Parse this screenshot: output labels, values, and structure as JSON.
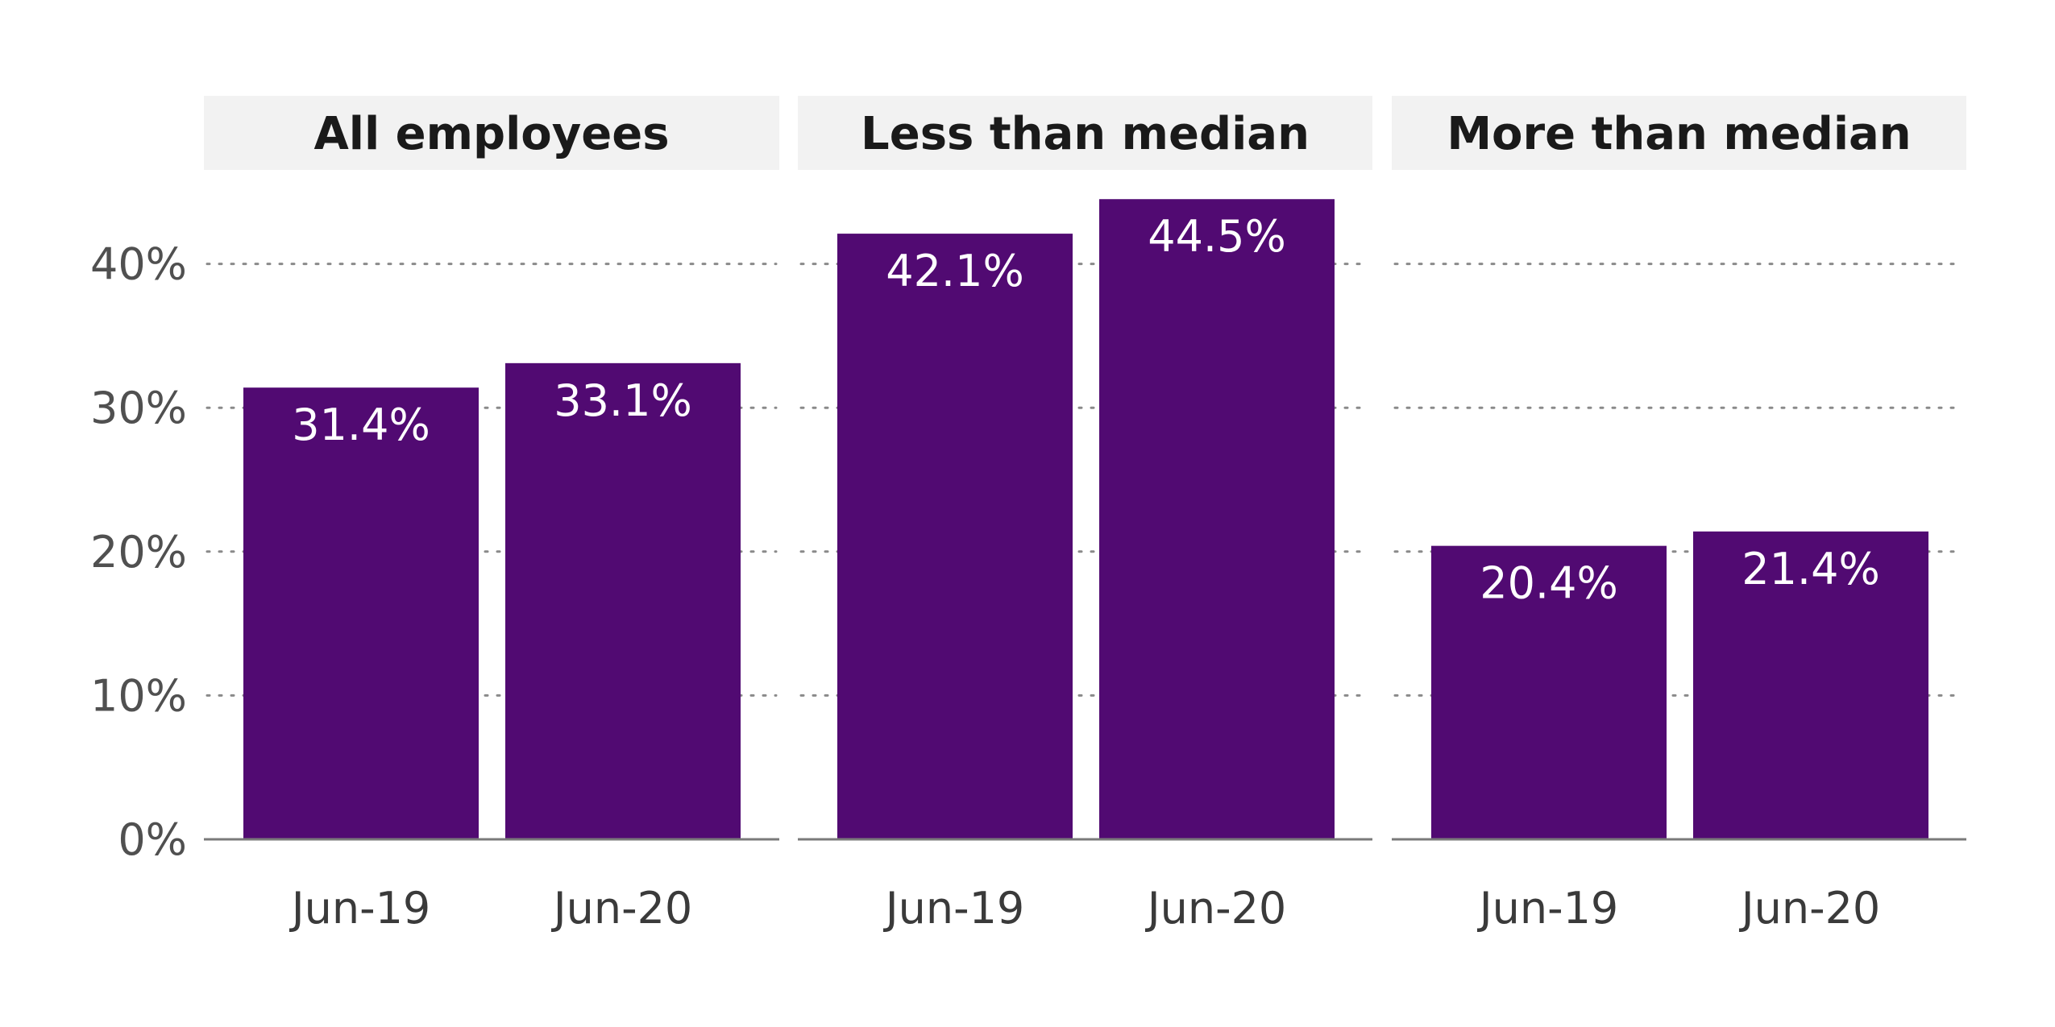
{
  "chart_data": {
    "type": "bar",
    "title": "",
    "xlabel": "",
    "ylabel": "",
    "ylim": [
      0,
      45
    ],
    "y_ticks": [
      0,
      10,
      20,
      30,
      40
    ],
    "y_tick_labels": [
      "0%",
      "10%",
      "20%",
      "30%",
      "40%"
    ],
    "categories": [
      "Jun-19",
      "Jun-20"
    ],
    "grid": true,
    "bar_color": "#510a72",
    "panels": [
      {
        "title": "All employees",
        "values": [
          31.4,
          33.1
        ],
        "labels": [
          "31.4%",
          "33.1%"
        ]
      },
      {
        "title": "Less than median",
        "values": [
          42.1,
          44.5
        ],
        "labels": [
          "42.1%",
          "44.5%"
        ]
      },
      {
        "title": "More than median",
        "values": [
          20.4,
          21.4
        ],
        "labels": [
          "20.4%",
          "21.4%"
        ]
      }
    ]
  }
}
